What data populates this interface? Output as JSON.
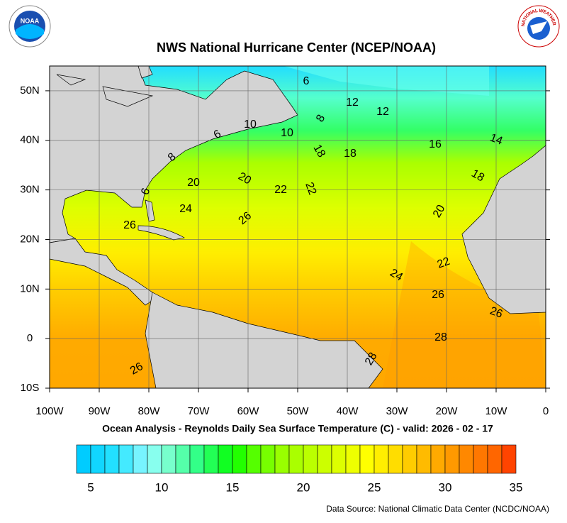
{
  "logos": {
    "left": "NOAA",
    "right": "NATIONAL WEATHER SERVICE"
  },
  "chart_data": {
    "type": "map",
    "title": "NWS National Hurricane Center (NCEP/NOAA)",
    "subtitle": "Ocean Analysis - Reynolds Daily Sea Surface Temperature (C) - valid: 2026 - 02 - 17",
    "source": "Data Source: National Climatic Data Center (NCDC/NOAA)",
    "xlim": [
      -100,
      0
    ],
    "ylim": [
      -10,
      55
    ],
    "xticks": [
      {
        "value": -100,
        "label": "100W"
      },
      {
        "value": -90,
        "label": "90W"
      },
      {
        "value": -80,
        "label": "80W"
      },
      {
        "value": -70,
        "label": "70W"
      },
      {
        "value": -60,
        "label": "60W"
      },
      {
        "value": -50,
        "label": "50W"
      },
      {
        "value": -40,
        "label": "40W"
      },
      {
        "value": -30,
        "label": "30W"
      },
      {
        "value": -20,
        "label": "20W"
      },
      {
        "value": -10,
        "label": "10W"
      },
      0
    ],
    "yticks": [
      {
        "value": -10,
        "label": "10S"
      },
      0,
      {
        "value": 10,
        "label": "10N"
      },
      {
        "value": 20,
        "label": "20N"
      },
      {
        "value": 30,
        "label": "30N"
      },
      {
        "value": 40,
        "label": "40N"
      },
      {
        "value": 50,
        "label": "50N"
      }
    ],
    "grid": true,
    "contour_labels": [
      6,
      12,
      12,
      8,
      10,
      10,
      6,
      18,
      18,
      16,
      14,
      18,
      8,
      20,
      20,
      22,
      22,
      6,
      24,
      26,
      20,
      26,
      22,
      24,
      26,
      26,
      28,
      28,
      26
    ],
    "colorbar": {
      "lim": [
        4,
        35
      ],
      "ticks": [
        5,
        10,
        15,
        20,
        25,
        30,
        35
      ],
      "colors": [
        "#00ccff",
        "#11d6ff",
        "#22e0ff",
        "#44eaff",
        "#77f4ff",
        "#88ffee",
        "#77ffcc",
        "#55ffaa",
        "#33ff88",
        "#22ff55",
        "#11ff22",
        "#22ff00",
        "#55ff00",
        "#77ff00",
        "#99ff00",
        "#aaff00",
        "#bbff00",
        "#ccff00",
        "#ddff00",
        "#eeff00",
        "#ffff00",
        "#ffee00",
        "#ffdd00",
        "#ffcc00",
        "#ffbb00",
        "#ffaa00",
        "#ff9900",
        "#ff8800",
        "#ff7700",
        "#ff6600",
        "#ff4400"
      ]
    }
  }
}
